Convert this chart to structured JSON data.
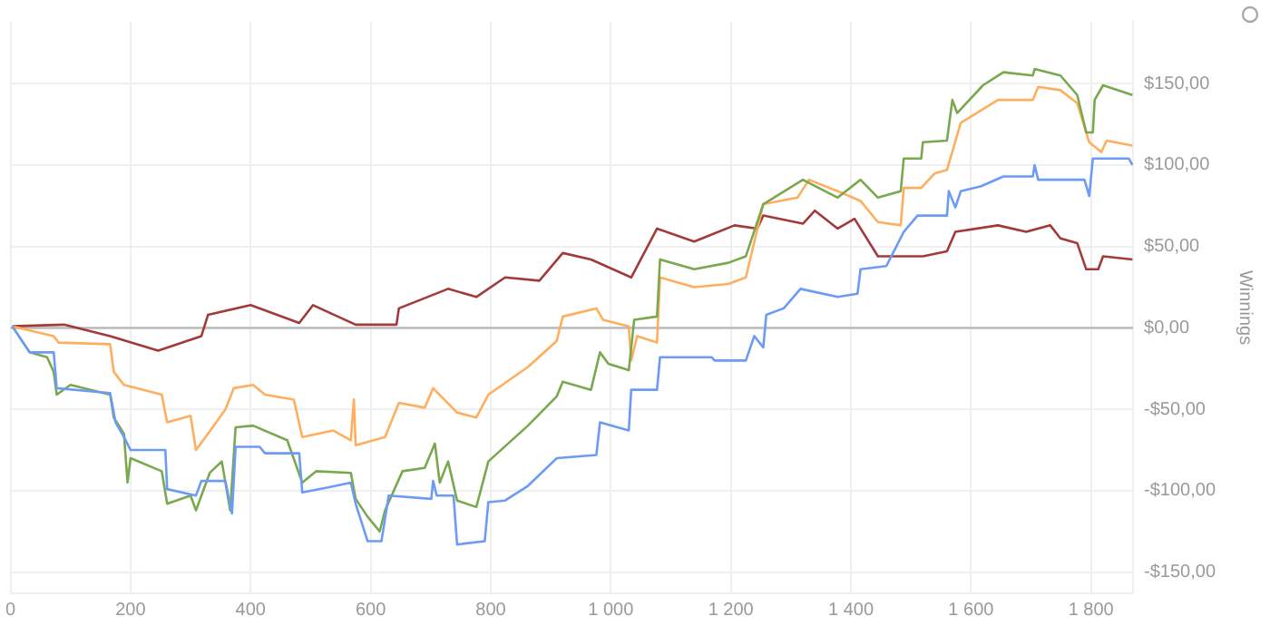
{
  "chart_data": {
    "type": "line",
    "ylabel": "Winnings",
    "xlim": [
      0,
      1870
    ],
    "xticks": [
      0,
      200,
      400,
      600,
      800,
      {
        "value": 1000,
        "label": "1 000"
      },
      {
        "value": 1200,
        "label": "1 200"
      },
      {
        "value": 1400,
        "label": "1 400"
      },
      {
        "value": 1600,
        "label": "1 600"
      },
      {
        "value": 1800,
        "label": "1 800"
      }
    ],
    "ylim": [
      -163,
      188
    ],
    "yticks": [
      {
        "value": -150,
        "label": "-$150,00"
      },
      {
        "value": -100,
        "label": "-$100,00"
      },
      {
        "value": -50,
        "label": "-$50,00"
      },
      {
        "value": 0,
        "label": "$0,00"
      },
      {
        "value": 50,
        "label": "$50,00"
      },
      {
        "value": 100,
        "label": "$100,00"
      },
      {
        "value": 150,
        "label": "$150,00"
      }
    ],
    "grid": true,
    "legend": false,
    "marker": "none",
    "line_style": "solid",
    "ref_lines": [
      {
        "axis": "y",
        "value": 0,
        "color": "#bbbbbb"
      }
    ],
    "series": [
      {
        "color": "#6b9bf5",
        "x": [
          3,
          32,
          72,
          77,
          166,
          175,
          189,
          200,
          258,
          261,
          309,
          318,
          358,
          369,
          375,
          415,
          424,
          481,
          486,
          529,
          567,
          575,
          595,
          618,
          630,
          701,
          704,
          710,
          738,
          744,
          790,
          796,
          824,
          862,
          910,
          976,
          982,
          1030,
          1034,
          1077,
          1082,
          1168,
          1173,
          1225,
          1239,
          1254,
          1259,
          1288,
          1316,
          1378,
          1411,
          1416,
          1459,
          1488,
          1511,
          1560,
          1563,
          1574,
          1583,
          1617,
          1654,
          1703,
          1706,
          1712,
          1789,
          1797,
          1803,
          1863,
          1869
        ],
        "values": [
          1,
          -15,
          -15,
          -37,
          -40,
          -58,
          -67,
          -75,
          -75,
          -99,
          -103,
          -94,
          -94,
          -114,
          -73,
          -73,
          -77,
          -77,
          -101,
          -98,
          -95,
          -108,
          -131,
          -131,
          -103,
          -105,
          -94,
          -103,
          -103,
          -133,
          -131,
          -107,
          -106,
          -97,
          -80,
          -78,
          -58,
          -63,
          -38,
          -38,
          -18,
          -18,
          -20,
          -20,
          -5,
          -12,
          8,
          12,
          24,
          19,
          21,
          36,
          38,
          59,
          69,
          69,
          84,
          74,
          84,
          87,
          93,
          93,
          100,
          91,
          91,
          81,
          104,
          104,
          100
        ]
      },
      {
        "color": "#7aa84f",
        "x": [
          3,
          32,
          61,
          72,
          77,
          100,
          166,
          172,
          189,
          195,
          200,
          252,
          261,
          300,
          309,
          332,
          352,
          366,
          375,
          404,
          461,
          486,
          509,
          567,
          575,
          595,
          615,
          624,
          653,
          690,
          707,
          715,
          729,
          744,
          776,
          796,
          862,
          910,
          920,
          967,
          982,
          996,
          1030,
          1039,
          1077,
          1082,
          1139,
          1196,
          1225,
          1254,
          1320,
          1378,
          1416,
          1445,
          1483,
          1488,
          1517,
          1520,
          1560,
          1569,
          1577,
          1620,
          1654,
          1703,
          1706,
          1749,
          1777,
          1792,
          1803,
          1806,
          1820,
          1869
        ],
        "values": [
          1,
          -15,
          -18,
          -27,
          -41,
          -35,
          -41,
          -55,
          -65,
          -95,
          -80,
          -88,
          -108,
          -103,
          -112,
          -89,
          -82,
          -112,
          -61,
          -60,
          -69,
          -95,
          -88,
          -89,
          -105,
          -116,
          -125,
          -112,
          -88,
          -86,
          -71,
          -95,
          -82,
          -106,
          -110,
          -82,
          -60,
          -42,
          -33,
          -38,
          -15,
          -22,
          -26,
          5,
          7,
          42,
          36,
          40,
          44,
          76,
          91,
          80,
          91,
          80,
          84,
          104,
          104,
          114,
          115,
          140,
          132,
          149,
          157,
          155,
          159,
          155,
          143,
          120,
          120,
          140,
          149,
          143
        ]
      },
      {
        "color": "#ffae5e",
        "x": [
          3,
          72,
          80,
          166,
          172,
          189,
          252,
          261,
          300,
          309,
          329,
          358,
          372,
          404,
          424,
          472,
          486,
          538,
          567,
          572,
          575,
          624,
          647,
          690,
          704,
          744,
          776,
          796,
          862,
          910,
          920,
          976,
          987,
          1030,
          1034,
          1044,
          1077,
          1082,
          1139,
          1196,
          1225,
          1254,
          1311,
          1330,
          1378,
          1416,
          1445,
          1483,
          1488,
          1517,
          1540,
          1560,
          1583,
          1645,
          1703,
          1712,
          1749,
          1777,
          1797,
          1817,
          1826,
          1869
        ],
        "values": [
          1,
          -5,
          -9,
          -10,
          -27,
          -35,
          -41,
          -58,
          -54,
          -75,
          -65,
          -50,
          -37,
          -35,
          -41,
          -44,
          -67,
          -63,
          -69,
          -44,
          -72,
          -67,
          -46,
          -49,
          -37,
          -52,
          -55,
          -41,
          -24,
          -8,
          7,
          12,
          5,
          1,
          -20,
          -5,
          -9,
          31,
          25,
          27,
          31,
          76,
          80,
          91,
          84,
          78,
          65,
          63,
          86,
          86,
          95,
          97,
          126,
          140,
          140,
          148,
          146,
          138,
          114,
          108,
          115,
          112
        ]
      },
      {
        "color": "#a33a3a",
        "x": [
          3,
          89,
          166,
          246,
          318,
          329,
          400,
          481,
          504,
          575,
          643,
          647,
          729,
          776,
          824,
          881,
          920,
          967,
          1034,
          1077,
          1139,
          1206,
          1244,
          1254,
          1320,
          1340,
          1378,
          1406,
          1445,
          1520,
          1560,
          1574,
          1645,
          1692,
          1732,
          1749,
          1777,
          1792,
          1812,
          1820,
          1869
        ],
        "values": [
          1,
          2,
          -5,
          -14,
          -5,
          8,
          14,
          3,
          14,
          2,
          2,
          12,
          24,
          19,
          31,
          29,
          46,
          42,
          31,
          61,
          53,
          63,
          61,
          69,
          64,
          72,
          61,
          67,
          44,
          44,
          47,
          59,
          63,
          59,
          63,
          55,
          52,
          36,
          36,
          44,
          42
        ]
      }
    ]
  }
}
